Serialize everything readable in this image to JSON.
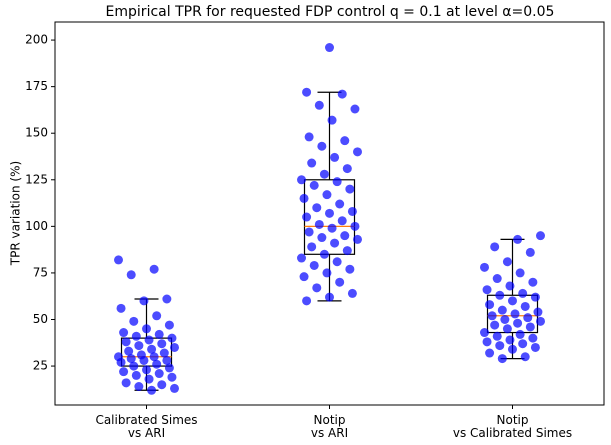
{
  "chart_data": {
    "type": "box",
    "title": "Empirical TPR for requested FDP control q = 0.1 at level α=0.05",
    "ylabel": "TPR variation (%)",
    "categories": [
      "Calibrated Simes\nvs ARI",
      "Notip\nvs ARI",
      "Notip\nvs Calibrated Simes"
    ],
    "ylim": [
      4.1,
      209.7
    ],
    "yticks": [
      25,
      50,
      75,
      100,
      125,
      150,
      175,
      200
    ],
    "box_color": "#000000",
    "median_color": "#ff7f0e",
    "point_color": "#0000ff",
    "boxes": [
      {
        "whislo": 12,
        "q1": 25,
        "med": 30,
        "q3": 40,
        "whishi": 61
      },
      {
        "whislo": 60,
        "q1": 85,
        "med": 100,
        "q3": 125,
        "whishi": 172
      },
      {
        "whislo": 29,
        "q1": 43,
        "med": 52,
        "q3": 63,
        "whishi": 93
      }
    ],
    "points": [
      [
        82,
        77,
        74,
        61,
        60,
        56,
        52,
        49,
        47,
        45,
        43,
        42,
        41,
        40,
        39,
        38,
        37,
        36,
        35,
        34,
        33,
        32,
        31,
        30,
        30,
        29,
        28,
        28,
        27,
        26,
        25,
        24,
        23,
        22,
        21,
        20,
        19,
        18,
        16,
        15,
        14,
        13,
        12
      ],
      [
        196,
        172,
        171,
        165,
        163,
        157,
        148,
        146,
        143,
        140,
        137,
        134,
        131,
        128,
        125,
        124,
        122,
        120,
        117,
        115,
        112,
        110,
        108,
        107,
        105,
        103,
        101,
        100,
        99,
        97,
        95,
        94,
        93,
        91,
        89,
        87,
        85,
        83,
        81,
        79,
        77,
        75,
        73,
        70,
        67,
        64,
        62,
        60
      ],
      [
        95,
        93,
        89,
        86,
        81,
        78,
        75,
        72,
        70,
        68,
        66,
        64,
        63,
        62,
        60,
        58,
        57,
        55,
        54,
        53,
        52,
        51,
        50,
        49,
        48,
        47,
        46,
        45,
        43,
        42,
        41,
        40,
        39,
        38,
        37,
        36,
        35,
        34,
        32,
        30,
        29
      ]
    ]
  }
}
